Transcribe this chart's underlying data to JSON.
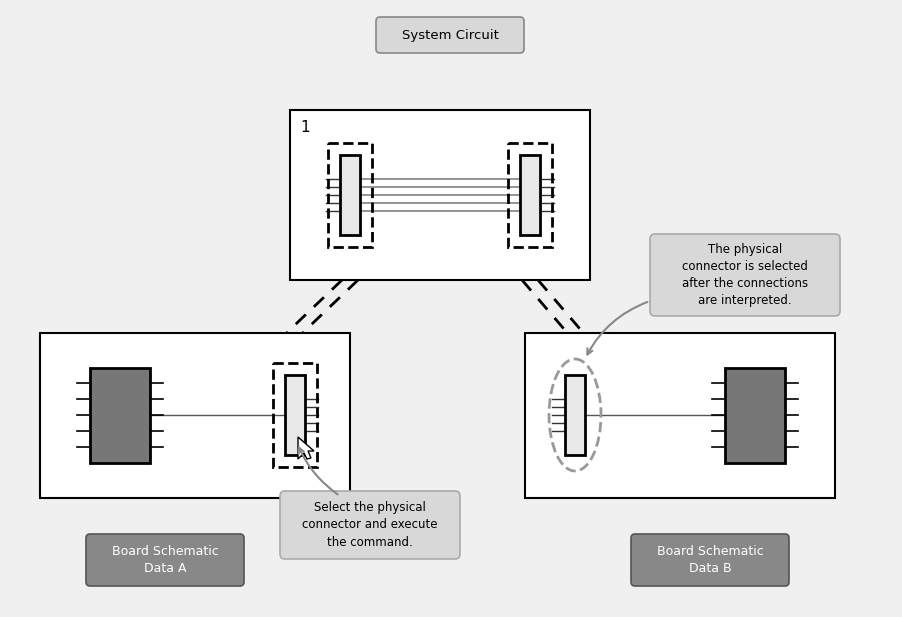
{
  "title": "System Circuit",
  "label_a": "Board Schematic\nData A",
  "label_b": "Board Schematic\nData B",
  "callout_left": "Select the physical\nconnector and execute\nthe command.",
  "callout_right": "The physical\nconnector is selected\nafter the connections\nare interpreted.",
  "num_wires": 5,
  "bg_color": "#f0f0f0",
  "box_face": "#ffffff",
  "connector_face": "#e8e8e8",
  "ic_face": "#777777",
  "label_face": "#888888",
  "callout_face": "#d8d8d8",
  "callout_edge": "#aaaaaa",
  "wire_color": "#555555",
  "dash_color": "#111111"
}
